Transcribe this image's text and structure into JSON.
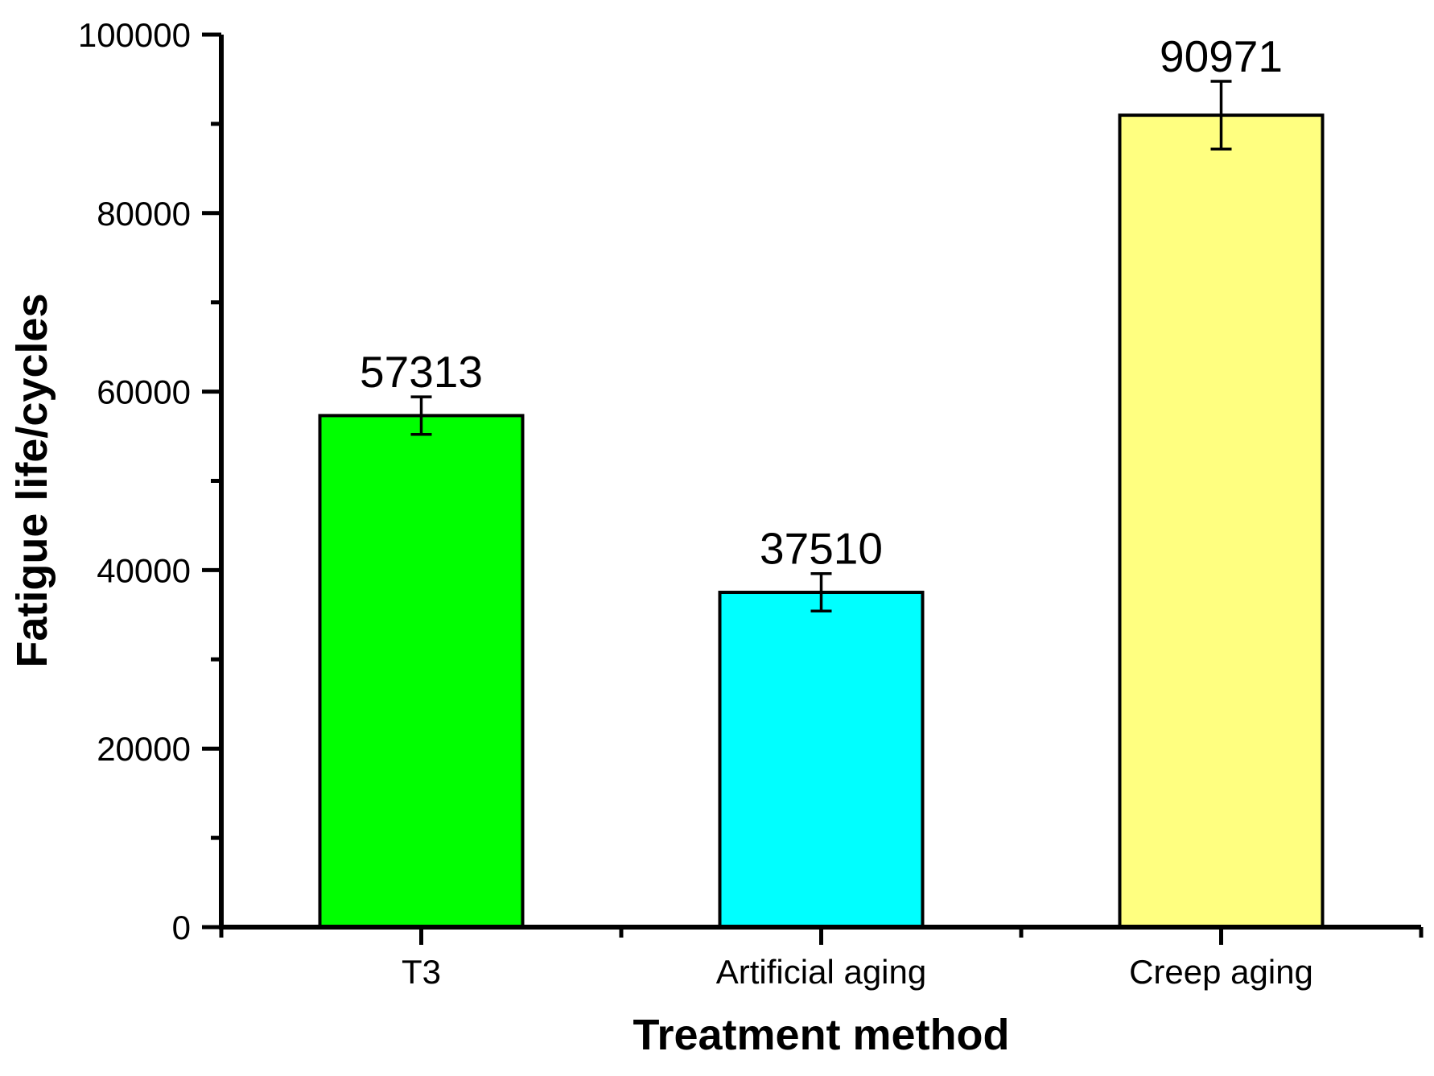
{
  "chart_data": {
    "type": "bar",
    "title": "",
    "xlabel": "Treatment method",
    "ylabel": "Fatigue life/cycles",
    "categories": [
      "T3",
      "Artificial aging",
      "Creep aging"
    ],
    "values": [
      57313,
      37510,
      90971
    ],
    "value_labels": [
      "57313",
      "37510",
      "90971"
    ],
    "errors": [
      2100,
      2100,
      3800
    ],
    "bar_colors": [
      "#00FF00",
      "#00FFFF",
      "#FFFF80"
    ],
    "bar_edge_color": "#000000",
    "axis_color": "#000000",
    "background": "#FFFFFF",
    "ylim": [
      0,
      100000
    ],
    "ytick_major": [
      0,
      20000,
      40000,
      60000,
      80000,
      100000
    ],
    "ytick_labels": [
      "0",
      "20000",
      "40000",
      "60000",
      "80000",
      "100000"
    ],
    "ytick_minor": [
      10000,
      30000,
      50000,
      70000,
      90000
    ],
    "grid": false,
    "legend": "none"
  }
}
